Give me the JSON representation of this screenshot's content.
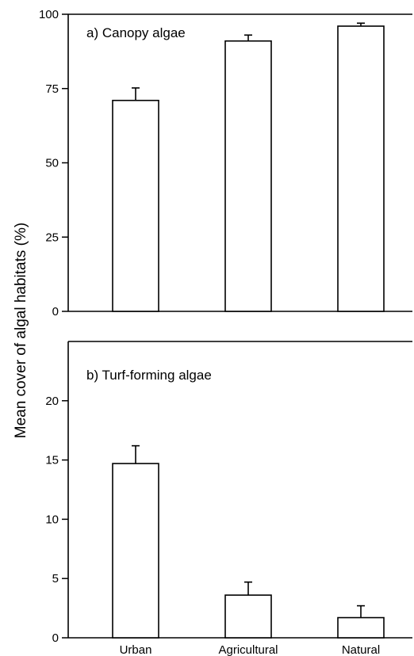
{
  "chart_data": [
    {
      "type": "bar",
      "title": "a) Canopy algae",
      "categories": [
        "Urban",
        "Agricultural",
        "Natural"
      ],
      "values": [
        71,
        91,
        96
      ],
      "error": [
        4.2,
        2,
        1
      ],
      "ylim": [
        0,
        100
      ],
      "yticks": [
        0,
        25,
        50,
        75,
        100
      ],
      "xlabel": "",
      "ylabel": "Mean cover of algal habitats (%)",
      "bar_color": "#ffffff",
      "grid": false
    },
    {
      "type": "bar",
      "title": "b) Turf-forming algae",
      "categories": [
        "Urban",
        "Agricultural",
        "Natural"
      ],
      "values": [
        14.7,
        3.6,
        1.7
      ],
      "error": [
        1.5,
        1.1,
        1.0
      ],
      "ylim": [
        0,
        25
      ],
      "yticks": [
        0,
        5,
        10,
        15,
        20
      ],
      "xlabel": "",
      "ylabel": "Mean cover of algal habitats (%)",
      "bar_color": "#ffffff",
      "grid": false
    }
  ],
  "shared": {
    "ylabel": "Mean cover of algal habitats (%)",
    "categories": [
      "Urban",
      "Agricultural",
      "Natural"
    ]
  }
}
